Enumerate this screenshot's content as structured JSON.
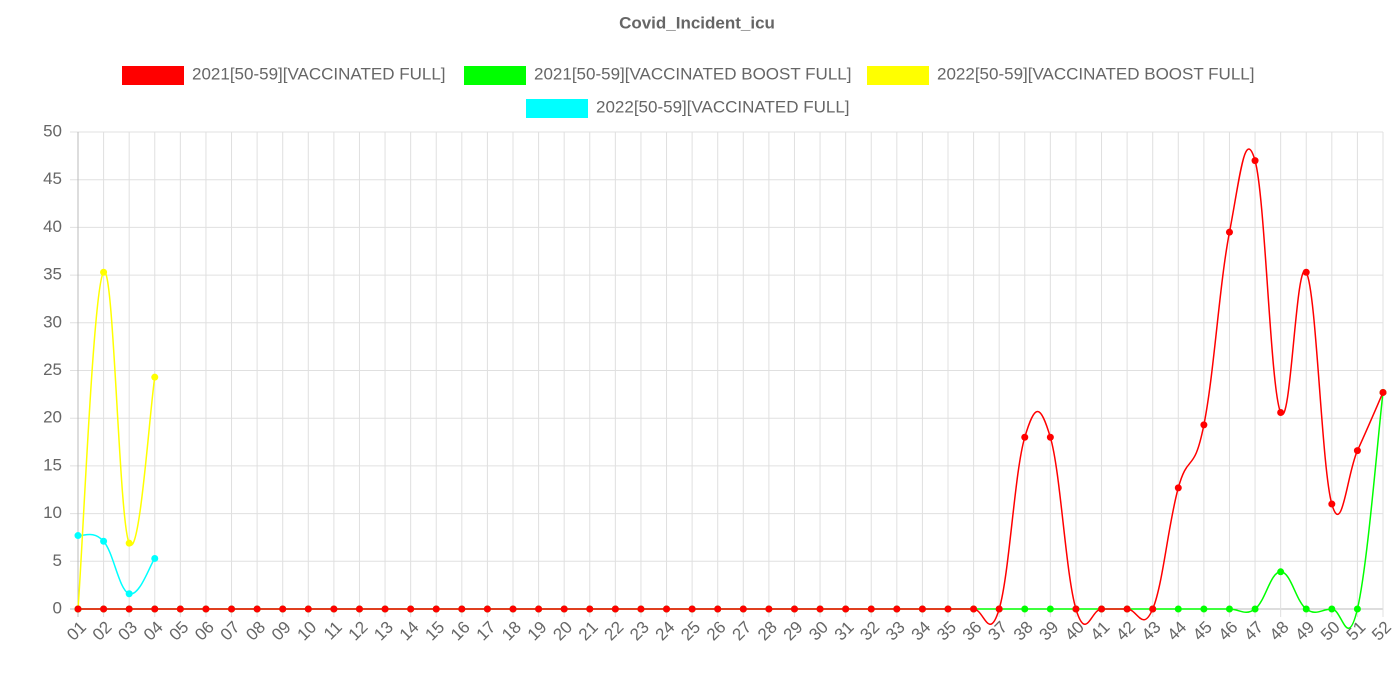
{
  "chart_data": {
    "type": "line",
    "title": "Covid_Incident_icu",
    "categories": [
      "01",
      "02",
      "03",
      "04",
      "05",
      "06",
      "07",
      "08",
      "09",
      "10",
      "11",
      "12",
      "13",
      "14",
      "15",
      "16",
      "17",
      "18",
      "19",
      "20",
      "21",
      "22",
      "23",
      "24",
      "25",
      "26",
      "27",
      "28",
      "29",
      "30",
      "31",
      "32",
      "33",
      "34",
      "35",
      "36",
      "37",
      "38",
      "39",
      "40",
      "41",
      "42",
      "43",
      "44",
      "45",
      "46",
      "47",
      "48",
      "49",
      "50",
      "51",
      "52"
    ],
    "series": [
      {
        "name": "2021[50-59][VACCINATED FULL]",
        "color": "#ff0000",
        "values": [
          0,
          0,
          0,
          0,
          0,
          0,
          0,
          0,
          0,
          0,
          0,
          0,
          0,
          0,
          0,
          0,
          0,
          0,
          0,
          0,
          0,
          0,
          0,
          0,
          0,
          0,
          0,
          0,
          0,
          0,
          0,
          0,
          0,
          0,
          0,
          0,
          0,
          18,
          18,
          0,
          0,
          0,
          0,
          12.7,
          19.3,
          39.5,
          47,
          20.6,
          35.3,
          11,
          16.6,
          22.7
        ]
      },
      {
        "name": "2021[50-59][VACCINATED BOOST FULL]",
        "color": "#00ff00",
        "values": [
          0,
          0,
          0,
          0,
          0,
          0,
          0,
          0,
          0,
          0,
          0,
          0,
          0,
          0,
          0,
          0,
          0,
          0,
          0,
          0,
          0,
          0,
          0,
          0,
          0,
          0,
          0,
          0,
          0,
          0,
          0,
          0,
          0,
          0,
          0,
          0,
          0,
          0,
          0,
          0,
          0,
          0,
          0,
          0,
          0,
          0,
          0,
          3.9,
          0,
          0,
          0,
          22.7
        ]
      },
      {
        "name": "2022[50-59][VACCINATED BOOST FULL]",
        "color": "#ffff00",
        "values": [
          0,
          35.3,
          6.9,
          24.3,
          null,
          null,
          null,
          null,
          null,
          null,
          null,
          null,
          null,
          null,
          null,
          null,
          null,
          null,
          null,
          null,
          null,
          null,
          null,
          null,
          null,
          null,
          null,
          null,
          null,
          null,
          null,
          null,
          null,
          null,
          null,
          null,
          null,
          null,
          null,
          null,
          null,
          null,
          null,
          null,
          null,
          null,
          null,
          null,
          null,
          null,
          null,
          null
        ]
      },
      {
        "name": "2022[50-59][VACCINATED FULL]",
        "color": "#00ffff",
        "values": [
          7.7,
          7.1,
          1.6,
          5.3,
          null,
          null,
          null,
          null,
          null,
          null,
          null,
          null,
          null,
          null,
          null,
          null,
          null,
          null,
          null,
          null,
          null,
          null,
          null,
          null,
          null,
          null,
          null,
          null,
          null,
          null,
          null,
          null,
          null,
          null,
          null,
          null,
          null,
          null,
          null,
          null,
          null,
          null,
          null,
          null,
          null,
          null,
          null,
          null,
          null,
          null,
          null,
          null
        ]
      }
    ],
    "ylim": [
      0,
      50
    ],
    "yticks": [
      0,
      5,
      10,
      15,
      20,
      25,
      30,
      35,
      40,
      45,
      50
    ],
    "grid": true,
    "legend": "top"
  }
}
